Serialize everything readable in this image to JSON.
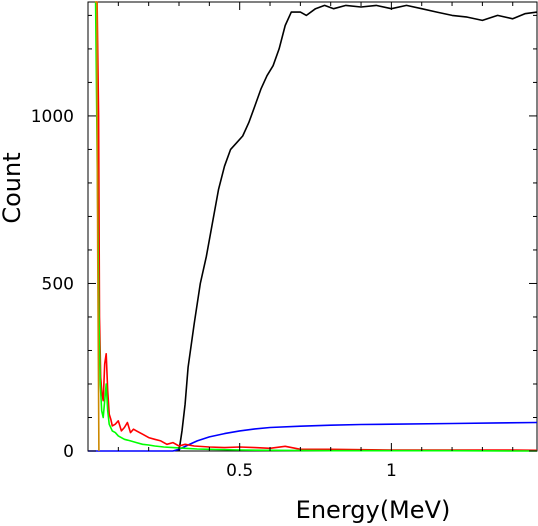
{
  "chart_data": {
    "type": "line",
    "xlabel": "Energy(MeV)",
    "ylabel": "Count",
    "xlim": [
      0.0,
      1.48
    ],
    "ylim": [
      0,
      1340
    ],
    "x_ticks": [
      0.5,
      1
    ],
    "x_tick_labels": [
      "0.5",
      "1"
    ],
    "y_ticks": [
      0,
      500,
      1000
    ],
    "y_tick_labels": [
      "0",
      "500",
      "1000"
    ],
    "grid": false,
    "series": [
      {
        "color": "#000000",
        "x": [
          0.3,
          0.31,
          0.32,
          0.33,
          0.35,
          0.37,
          0.39,
          0.41,
          0.43,
          0.45,
          0.47,
          0.49,
          0.51,
          0.53,
          0.55,
          0.57,
          0.59,
          0.61,
          0.63,
          0.65,
          0.67,
          0.7,
          0.72,
          0.75,
          0.78,
          0.81,
          0.85,
          0.9,
          0.95,
          1.0,
          1.05,
          1.1,
          1.15,
          1.2,
          1.25,
          1.3,
          1.35,
          1.4,
          1.44,
          1.48
        ],
        "y": [
          0,
          60,
          140,
          250,
          380,
          500,
          580,
          680,
          780,
          850,
          900,
          920,
          940,
          980,
          1030,
          1080,
          1120,
          1150,
          1200,
          1270,
          1310,
          1310,
          1300,
          1320,
          1330,
          1320,
          1330,
          1325,
          1330,
          1320,
          1330,
          1320,
          1310,
          1300,
          1295,
          1285,
          1300,
          1290,
          1305,
          1310
        ]
      },
      {
        "color": "#0000ff",
        "x": [
          0.0,
          0.28,
          0.3,
          0.33,
          0.36,
          0.4,
          0.45,
          0.5,
          0.55,
          0.6,
          0.7,
          0.8,
          0.9,
          1.0,
          1.2,
          1.35,
          1.48
        ],
        "y": [
          0,
          0,
          5,
          18,
          30,
          42,
          52,
          60,
          66,
          70,
          74,
          77,
          79,
          80,
          82,
          84,
          85
        ]
      },
      {
        "color": "#ff0000",
        "x": [
          0.025,
          0.03,
          0.035,
          0.038,
          0.042,
          0.046,
          0.05,
          0.055,
          0.06,
          0.065,
          0.07,
          0.075,
          0.08,
          0.09,
          0.1,
          0.11,
          0.12,
          0.13,
          0.14,
          0.15,
          0.16,
          0.18,
          0.2,
          0.22,
          0.24,
          0.26,
          0.28,
          0.3,
          0.32,
          0.35,
          0.4,
          0.45,
          0.5,
          0.55,
          0.6,
          0.65,
          0.7,
          0.8,
          0.9,
          1.0,
          1.2,
          1.4,
          1.48
        ],
        "y": [
          1340,
          1340,
          1000,
          400,
          220,
          170,
          150,
          260,
          290,
          180,
          110,
          95,
          75,
          80,
          90,
          60,
          70,
          85,
          55,
          65,
          60,
          50,
          40,
          35,
          30,
          20,
          25,
          15,
          20,
          15,
          12,
          10,
          12,
          10,
          8,
          14,
          5,
          5,
          4,
          3,
          3,
          3,
          2
        ]
      },
      {
        "color": "#00ff00",
        "x": [
          0.025,
          0.03,
          0.035,
          0.04,
          0.045,
          0.05,
          0.055,
          0.06,
          0.065,
          0.07,
          0.08,
          0.09,
          0.1,
          0.12,
          0.14,
          0.16,
          0.18,
          0.2,
          0.22,
          0.25,
          0.28,
          0.32,
          0.36,
          0.4,
          0.5,
          0.6,
          0.8,
          1.0,
          1.2,
          1.48
        ],
        "y": [
          1340,
          900,
          460,
          210,
          120,
          100,
          150,
          200,
          120,
          80,
          60,
          55,
          45,
          35,
          30,
          25,
          20,
          18,
          15,
          12,
          10,
          8,
          6,
          5,
          3,
          2,
          1,
          1,
          1,
          0
        ]
      },
      {
        "color": "#cc8800",
        "x": [
          0.023,
          0.026,
          0.029,
          0.032,
          0.036
        ],
        "y": [
          1340,
          1340,
          1340,
          600,
          0
        ]
      }
    ]
  }
}
